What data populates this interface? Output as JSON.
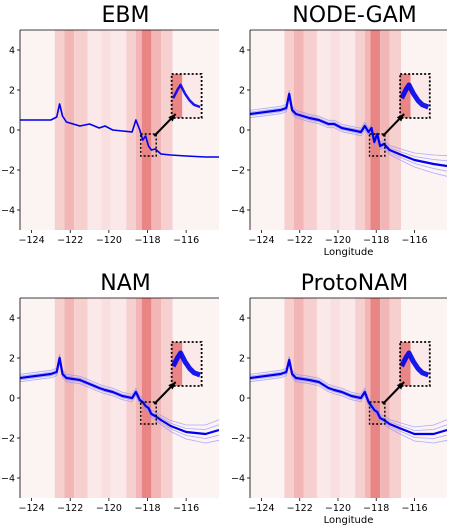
{
  "chart_data": [
    {
      "type": "line",
      "title": "EBM",
      "xlabel": "",
      "ylabel": "",
      "xlim": [
        -124.6,
        -114.3
      ],
      "ylim": [
        -5,
        5
      ],
      "xticks": [
        "−124",
        "−122",
        "−120",
        "−118",
        "−116"
      ],
      "xtick_values": [
        -124,
        -122,
        -120,
        -118,
        -116
      ],
      "yticks": [
        "−4",
        "−2",
        "0",
        "2",
        "4"
      ],
      "ytick_values": [
        -4,
        -2,
        0,
        2,
        4
      ],
      "x": [
        -124.6,
        -123.0,
        -122.7,
        -122.55,
        -122.4,
        -122.2,
        -121.5,
        -121.0,
        -120.5,
        -120.2,
        -119.8,
        -119.3,
        -118.8,
        -118.6,
        -118.4,
        -118.25,
        -118.1,
        -117.95,
        -117.8,
        -117.6,
        -117.3,
        -116.8,
        -116.0,
        -115.0,
        -114.3
      ],
      "series": [
        {
          "values": [
            0.5,
            0.5,
            0.65,
            1.3,
            0.7,
            0.4,
            0.2,
            0.3,
            0.1,
            0.2,
            0.0,
            -0.05,
            -0.1,
            0.5,
            0.0,
            -0.5,
            -0.3,
            -0.8,
            -1.0,
            -0.95,
            -1.2,
            -1.25,
            -1.3,
            -1.35,
            -1.35
          ]
        }
      ]
    },
    {
      "type": "line",
      "title": "NODE-GAM",
      "xlabel": "Longitude",
      "ylabel": "",
      "xlim": [
        -124.6,
        -114.3
      ],
      "ylim": [
        -5,
        5
      ],
      "xticks": [
        "−124",
        "−122",
        "−120",
        "−118",
        "−116"
      ],
      "xtick_values": [
        -124,
        -122,
        -120,
        -118,
        -116
      ],
      "yticks": [
        "−4",
        "−2",
        "0",
        "2",
        "4"
      ],
      "ytick_values": [
        -4,
        -2,
        0,
        2,
        4
      ],
      "x": [
        -124.6,
        -123.0,
        -122.7,
        -122.55,
        -122.4,
        -122.2,
        -121.5,
        -121.0,
        -120.5,
        -120.2,
        -119.8,
        -119.3,
        -118.8,
        -118.6,
        -118.4,
        -118.25,
        -118.1,
        -117.95,
        -117.8,
        -117.6,
        -117.3,
        -116.8,
        -116.0,
        -115.0,
        -114.3
      ],
      "series": [
        {
          "values": [
            0.8,
            1.0,
            1.1,
            1.8,
            1.0,
            0.8,
            0.6,
            0.5,
            0.3,
            0.3,
            0.1,
            0.0,
            -0.1,
            0.2,
            -0.1,
            0.1,
            -0.6,
            -0.2,
            -0.8,
            -0.7,
            -1.0,
            -1.2,
            -1.5,
            -1.7,
            -1.8
          ]
        }
      ]
    },
    {
      "type": "line",
      "title": "NAM",
      "xlabel": "",
      "ylabel": "",
      "xlim": [
        -124.6,
        -114.3
      ],
      "ylim": [
        -5,
        5
      ],
      "xticks": [
        "−124",
        "−122",
        "−120",
        "−118",
        "−116"
      ],
      "xtick_values": [
        -124,
        -122,
        -120,
        -118,
        -116
      ],
      "yticks": [
        "−4",
        "−2",
        "0",
        "2",
        "4"
      ],
      "ytick_values": [
        -4,
        -2,
        0,
        2,
        4
      ],
      "x": [
        -124.6,
        -123.0,
        -122.7,
        -122.55,
        -122.4,
        -122.2,
        -121.5,
        -121.0,
        -120.5,
        -120.2,
        -119.8,
        -119.3,
        -118.8,
        -118.6,
        -118.4,
        -118.25,
        -118.1,
        -117.95,
        -117.8,
        -117.6,
        -117.3,
        -116.8,
        -116.0,
        -115.0,
        -114.3
      ],
      "series": [
        {
          "values": [
            1.0,
            1.2,
            1.3,
            2.0,
            1.2,
            1.0,
            0.9,
            0.7,
            0.5,
            0.4,
            0.3,
            0.1,
            0.0,
            0.3,
            -0.1,
            -0.2,
            -0.4,
            -0.5,
            -0.8,
            -0.9,
            -1.1,
            -1.4,
            -1.7,
            -1.8,
            -1.6
          ]
        }
      ]
    },
    {
      "type": "line",
      "title": "ProtoNAM",
      "xlabel": "Longitude",
      "ylabel": "",
      "xlim": [
        -124.6,
        -114.3
      ],
      "ylim": [
        -5,
        5
      ],
      "xticks": [
        "−124",
        "−122",
        "−120",
        "−118",
        "−116"
      ],
      "xtick_values": [
        -124,
        -122,
        -120,
        -118,
        -116
      ],
      "yticks": [
        "−4",
        "−2",
        "0",
        "2",
        "4"
      ],
      "ytick_values": [
        -4,
        -2,
        0,
        2,
        4
      ],
      "x": [
        -124.6,
        -123.0,
        -122.7,
        -122.55,
        -122.4,
        -122.2,
        -121.5,
        -121.0,
        -120.5,
        -120.2,
        -119.8,
        -119.3,
        -118.8,
        -118.6,
        -118.4,
        -118.25,
        -118.1,
        -117.95,
        -117.8,
        -117.6,
        -117.3,
        -116.8,
        -116.0,
        -115.0,
        -114.3
      ],
      "series": [
        {
          "values": [
            1.0,
            1.2,
            1.3,
            1.9,
            1.2,
            1.0,
            0.9,
            0.8,
            0.5,
            0.4,
            0.3,
            0.1,
            0.0,
            0.3,
            -0.2,
            -0.4,
            -0.6,
            -0.7,
            -1.0,
            -1.1,
            -1.3,
            -1.5,
            -1.8,
            -1.8,
            -1.6
          ]
        }
      ]
    }
  ],
  "background_bands": {
    "colors": [
      "#fbe9e9",
      "#f6cfcf",
      "#f2b6b6",
      "#e98585",
      "#fcf3f3",
      "#f9dfdf"
    ],
    "bands": [
      {
        "x0": -124.6,
        "x1": -122.8,
        "c": 4
      },
      {
        "x0": -122.8,
        "x1": -122.3,
        "c": 1
      },
      {
        "x0": -122.3,
        "x1": -121.8,
        "c": 2
      },
      {
        "x0": -121.8,
        "x1": -121.1,
        "c": 1
      },
      {
        "x0": -121.1,
        "x1": -120.4,
        "c": 0
      },
      {
        "x0": -120.4,
        "x1": -119.9,
        "c": 5
      },
      {
        "x0": -119.9,
        "x1": -119.1,
        "c": 0
      },
      {
        "x0": -119.1,
        "x1": -118.6,
        "c": 1
      },
      {
        "x0": -118.6,
        "x1": -118.3,
        "c": 2
      },
      {
        "x0": -118.3,
        "x1": -117.8,
        "c": 3
      },
      {
        "x0": -117.8,
        "x1": -117.3,
        "c": 2
      },
      {
        "x0": -117.3,
        "x1": -116.7,
        "c": 1
      },
      {
        "x0": -116.7,
        "x1": -114.3,
        "c": 4
      }
    ]
  },
  "line_color": "#0000ee"
}
